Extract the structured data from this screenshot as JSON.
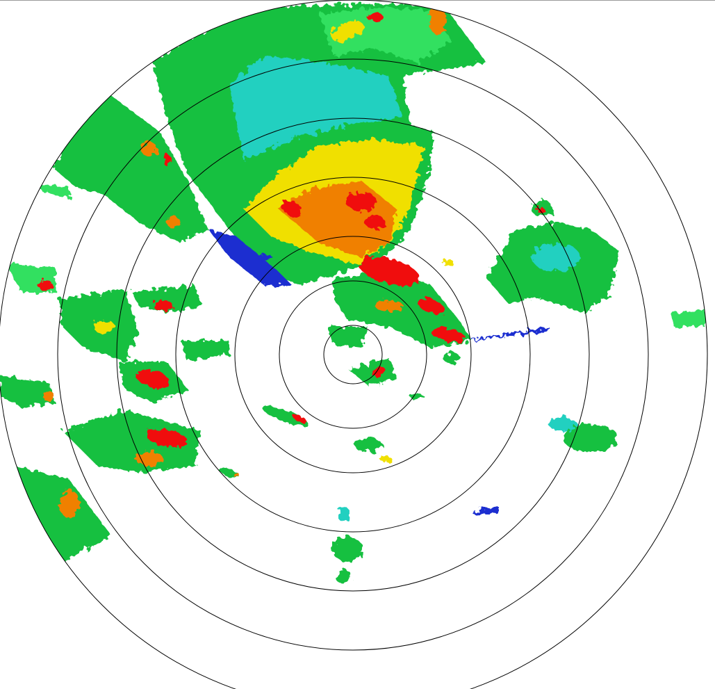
{
  "radar": {
    "range_ring_count": 7,
    "reflectivity_colors": {
      "weak": "#1a2fd0",
      "light": "#20d0c0",
      "moderate": "#18c040",
      "moderate_bright": "#30e060",
      "heavy": "#f0e000",
      "intense": "#f08000",
      "severe": "#f01010"
    },
    "ring_color": "#000000",
    "background": "#ffffff"
  }
}
